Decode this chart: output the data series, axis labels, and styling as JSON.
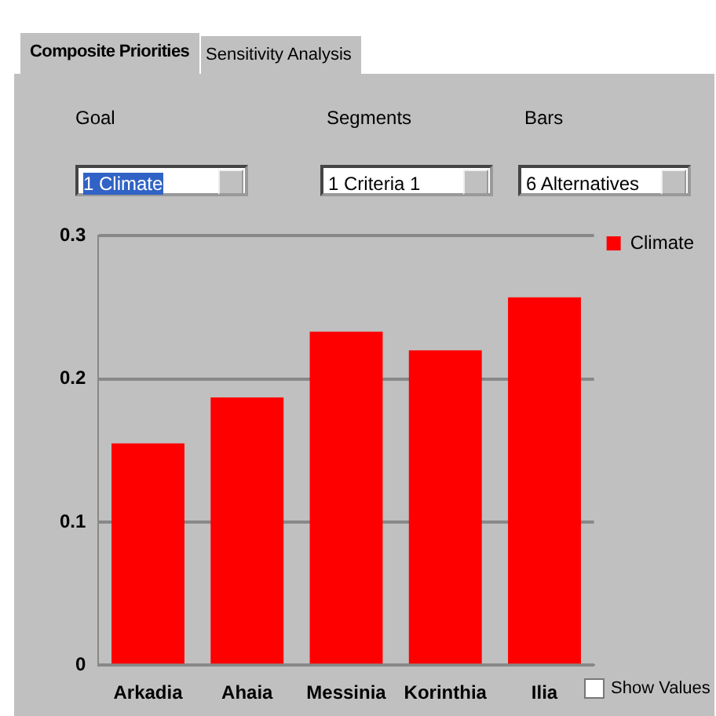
{
  "chart_data": {
    "type": "bar",
    "categories": [
      "Arkadia",
      "Ahaia",
      "Messinia",
      "Korinthia",
      "Ilia"
    ],
    "series": [
      {
        "name": "Climate",
        "color": "#ff0000",
        "values": [
          0.155,
          0.187,
          0.233,
          0.22,
          0.257
        ]
      }
    ],
    "ylim": [
      0,
      0.3
    ],
    "yticks": [
      0,
      0.1,
      0.2,
      0.3
    ],
    "grid": "y",
    "legend": "top right",
    "annotations": [
      "Composite Priorities",
      "Sensitivity Analysis",
      "Goal",
      "Segments",
      "Bars",
      "1 Climate",
      "1 Criteria 1",
      "6 Alternatives",
      "Show Values"
    ]
  }
}
